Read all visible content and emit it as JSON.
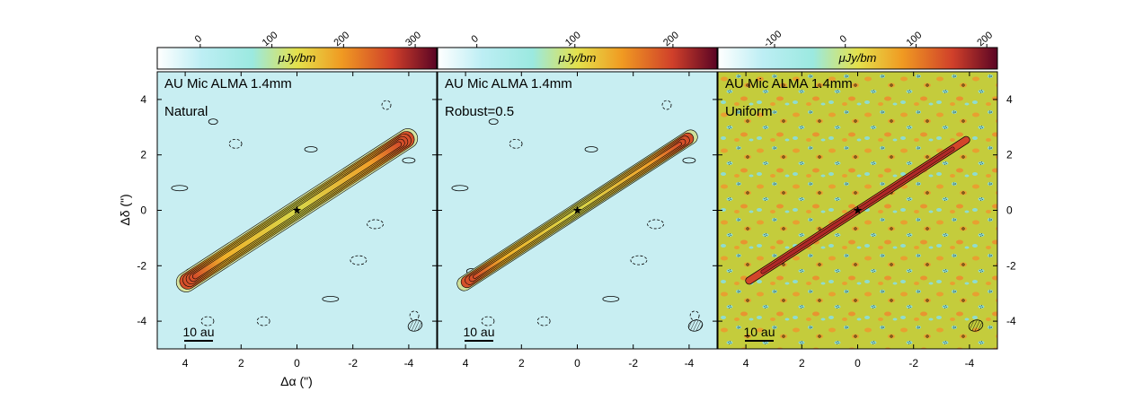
{
  "chart_data": {
    "type": "heatmap",
    "figure": {
      "xlabel": "Δα (\")",
      "ylabel": "Δδ (\")",
      "xlim": [
        5,
        -5
      ],
      "ylim": [
        -5,
        5
      ],
      "x_ticks": [
        "4",
        "2",
        "0",
        "-2",
        "-4"
      ],
      "y_ticks": [
        "4",
        "2",
        "0",
        "-2",
        "-4"
      ],
      "y_tick_values": [
        4,
        2,
        0,
        -2,
        -4
      ],
      "x_tick_values": [
        4,
        2,
        0,
        -2,
        -4
      ]
    },
    "panels": [
      {
        "id": "natural",
        "title": "AU Mic ALMA 1.4mm",
        "subtitle": "Natural",
        "scalebar": "10 au",
        "colorbar": {
          "label": "μJy/bm",
          "ticks": [
            "0",
            "100",
            "200",
            "300"
          ],
          "tick_values": [
            0,
            100,
            200,
            300
          ],
          "range": [
            -60,
            330
          ]
        },
        "background": "#c8eef2",
        "disk_peak_value": 300
      },
      {
        "id": "robust",
        "title": "AU Mic ALMA 1.4mm",
        "subtitle": "Robust=0.5",
        "scalebar": "10 au",
        "colorbar": {
          "label": "μJy/bm",
          "ticks": [
            "0",
            "100",
            "200"
          ],
          "tick_values": [
            0,
            100,
            200
          ],
          "range": [
            -40,
            245
          ]
        },
        "background": "#c8eef2",
        "disk_peak_value": 230
      },
      {
        "id": "uniform",
        "title": "AU Mic ALMA 1.4mm",
        "subtitle": "Uniform",
        "scalebar": "10 au",
        "colorbar": {
          "label": "μJy/bm",
          "ticks": [
            "-100",
            "0",
            "100",
            "200"
          ],
          "tick_values": [
            -100,
            0,
            100,
            200
          ],
          "range": [
            -180,
            215
          ]
        },
        "background": "#c4cc3c",
        "disk_peak_value": 200
      }
    ],
    "disk": {
      "position_angle_deg": 128,
      "extent_arcsec": [
        -4.1,
        3.9
      ],
      "star_position": [
        0,
        0
      ]
    },
    "colormap": [
      "#ffffff",
      "#bdeef4",
      "#5fd8e8",
      "#e8e24a",
      "#f09a22",
      "#d0402a",
      "#5a0424"
    ]
  }
}
